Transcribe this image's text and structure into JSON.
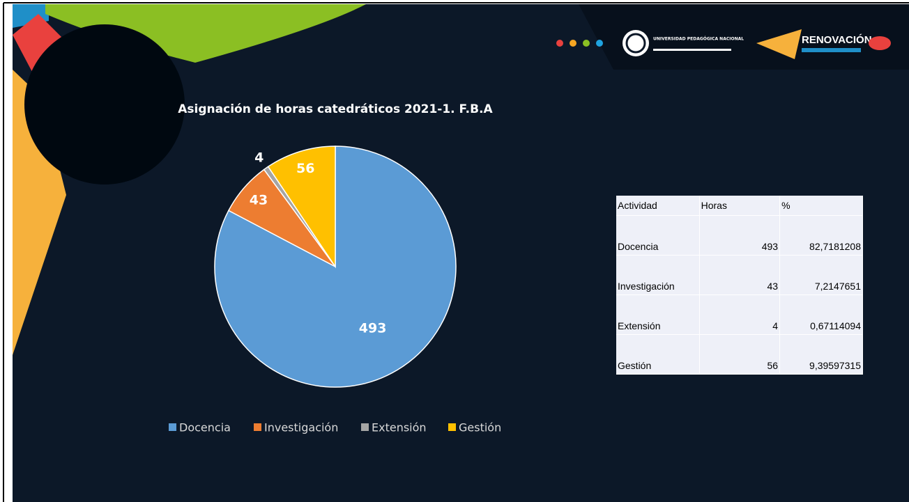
{
  "header": {
    "university": "UNIVERSIDAD PEDAGÓGICA NACIONAL",
    "brand": "RENOVACIÓN"
  },
  "chart_data": {
    "type": "pie",
    "title": "Asignación de horas catedráticos 2021-1. F.B.A",
    "categories": [
      "Docencia",
      "Investigación",
      "Extensión",
      "Gestión"
    ],
    "values": [
      493,
      43,
      4,
      56
    ],
    "colors": [
      "#5b9bd5",
      "#ed7d31",
      "#a5a5a5",
      "#ffc000"
    ],
    "legend": "bottom"
  },
  "table": {
    "header": [
      "Actividad",
      "Horas",
      "%"
    ],
    "rows": [
      [
        "Docencia",
        "493",
        "82,7181208"
      ],
      [
        "Investigación",
        "43",
        "7,2147651"
      ],
      [
        "Extensión",
        "4",
        "0,67114094"
      ],
      [
        "Gestión",
        "56",
        "9,39597315"
      ]
    ]
  }
}
